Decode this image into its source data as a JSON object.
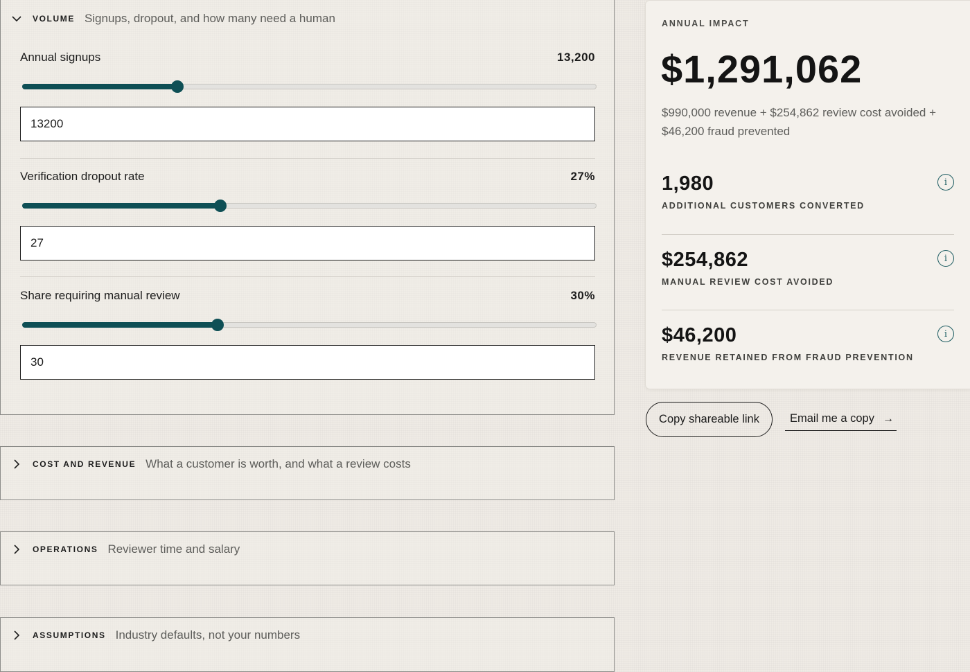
{
  "accordions": {
    "volume": {
      "kicker": "VOLUME",
      "description": "Signups, dropout, and how many need a human",
      "expanded": true
    },
    "cost": {
      "kicker": "COST AND REVENUE",
      "description": "What a customer is worth, and what a review costs",
      "expanded": false
    },
    "operations": {
      "kicker": "OPERATIONS",
      "description": "Reviewer time and salary",
      "expanded": false
    },
    "assumptions": {
      "kicker": "ASSUMPTIONS",
      "description": "Industry defaults, not your numbers",
      "expanded": false
    }
  },
  "fields": {
    "signups": {
      "label": "Annual signups",
      "display": "13,200",
      "input": "13200",
      "slider_fraction": 0.27
    },
    "dropout": {
      "label": "Verification dropout rate",
      "display": "27%",
      "input": "27",
      "slider_fraction": 0.345
    },
    "review": {
      "label": "Share requiring manual review",
      "display": "30%",
      "input": "30",
      "slider_fraction": 0.34
    }
  },
  "impact": {
    "kicker": "ANNUAL IMPACT",
    "total": "$1,291,062",
    "summary": "$990,000 revenue + $254,862 review cost avoided + $46,200 fraud prevented",
    "metrics": [
      {
        "value": "1,980",
        "label": "ADDITIONAL CUSTOMERS CONVERTED"
      },
      {
        "value": "$254,862",
        "label": "MANUAL REVIEW COST AVOIDED"
      },
      {
        "value": "$46,200",
        "label": "REVENUE RETAINED FROM FRAUD PREVENTION"
      }
    ],
    "info_glyph": "i"
  },
  "actions": {
    "copy_label": "Copy shareable link",
    "email_label": "Email me a copy",
    "email_arrow": "→"
  },
  "colors": {
    "accent": "#0e4f55",
    "background": "#efebe5"
  },
  "icons": {
    "expanded": "chevron-down-icon",
    "collapsed": "chevron-right-icon",
    "info": "info-icon",
    "arrow": "arrow-right-icon"
  }
}
